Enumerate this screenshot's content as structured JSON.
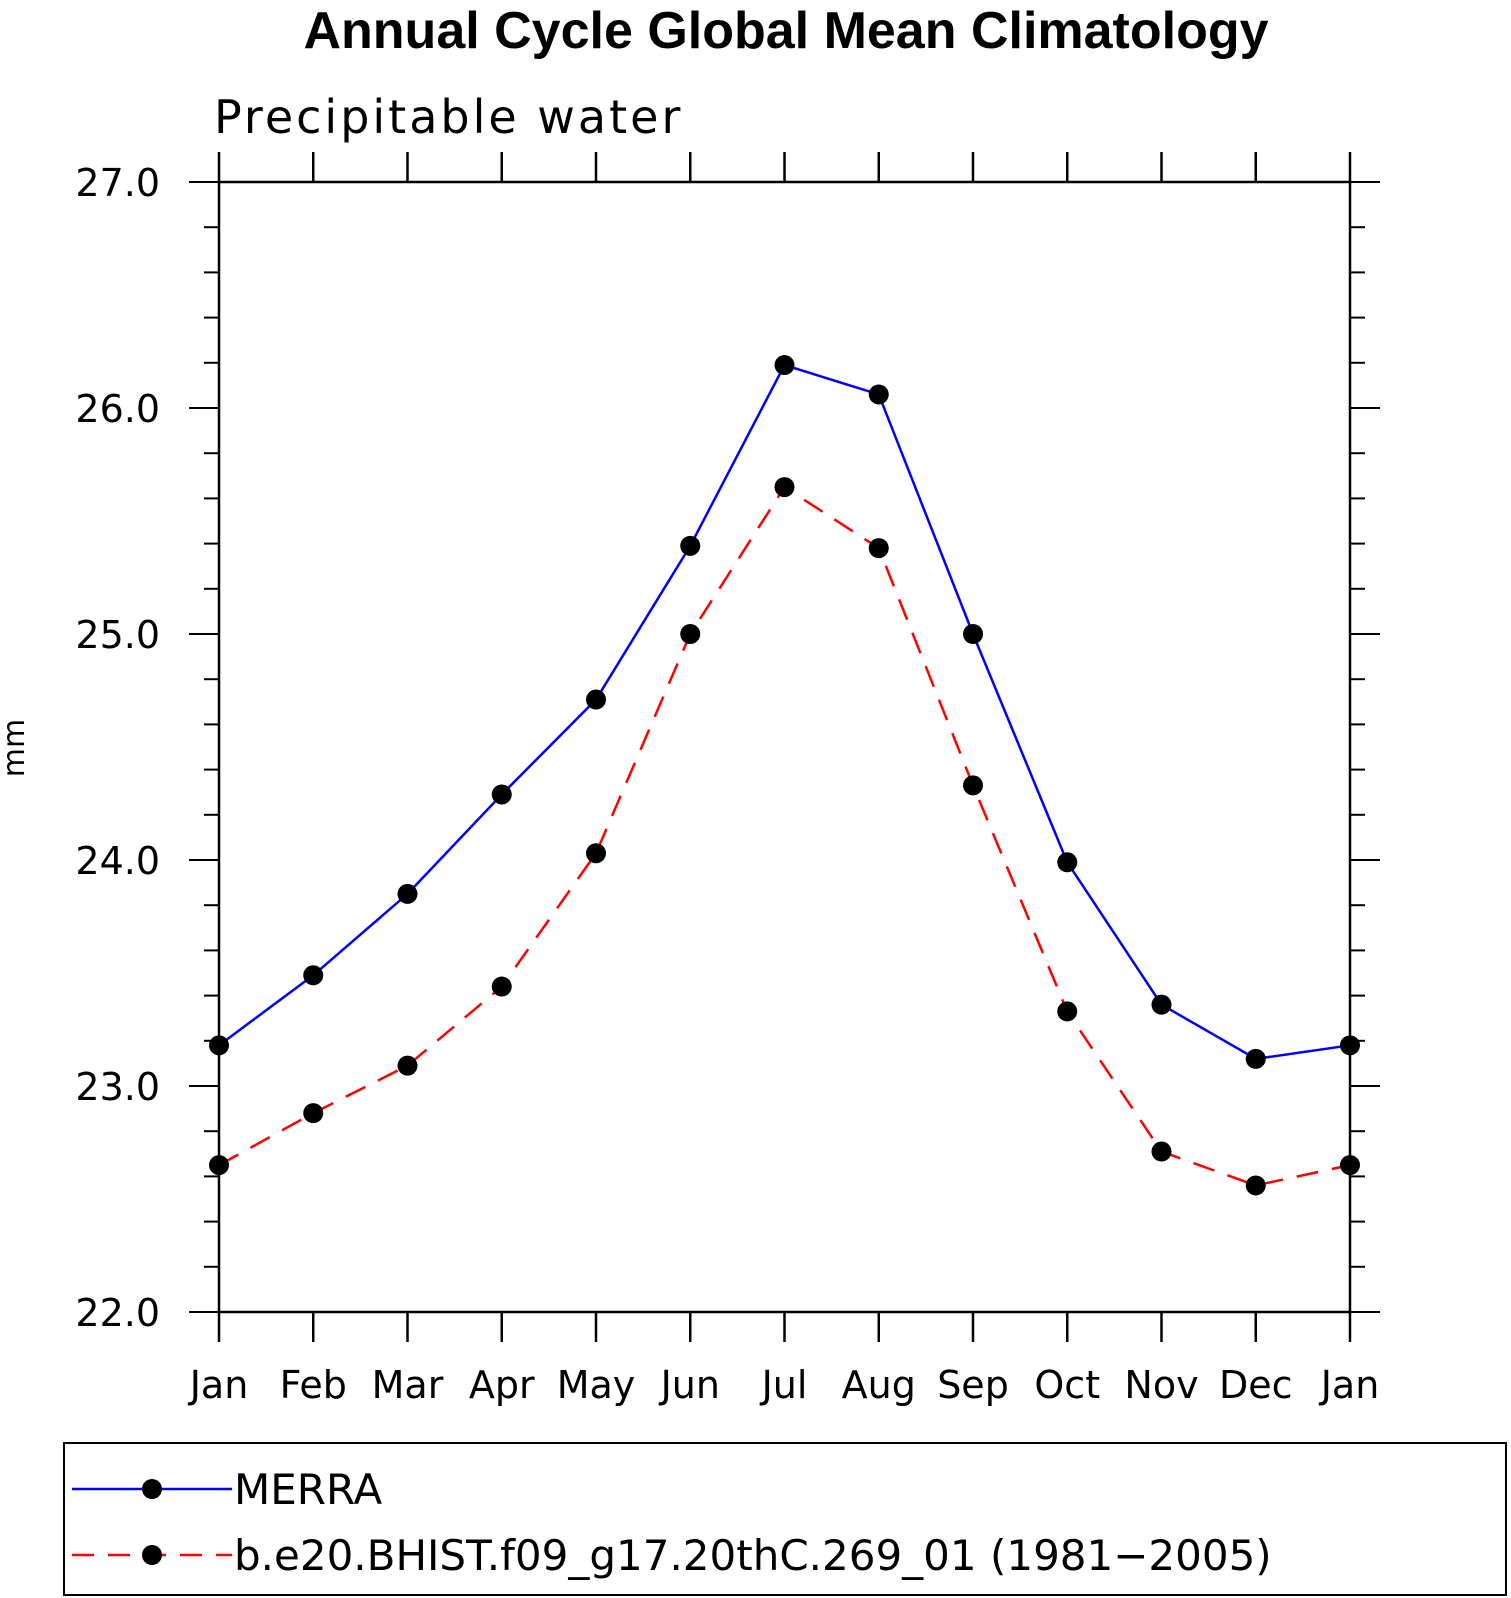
{
  "chart_data": {
    "type": "line",
    "title": "Annual Cycle Global Mean Climatology",
    "subtitle": "Precipitable water",
    "xlabel": "",
    "ylabel": "mm",
    "categories": [
      "Jan",
      "Feb",
      "Mar",
      "Apr",
      "May",
      "Jun",
      "Jul",
      "Aug",
      "Sep",
      "Oct",
      "Nov",
      "Dec",
      "Jan"
    ],
    "ylim": [
      22.0,
      27.0
    ],
    "yticks": [
      "22.0",
      "23.0",
      "24.0",
      "25.0",
      "26.0",
      "27.0"
    ],
    "series": [
      {
        "name": "MERRA",
        "color": "#0000ff",
        "dash": "solid",
        "values": [
          23.18,
          23.49,
          23.85,
          24.29,
          24.71,
          25.39,
          26.19,
          26.06,
          25.0,
          23.99,
          23.36,
          23.12,
          23.18
        ]
      },
      {
        "name": "b.e20.BHIST.f09_g17.20thC.269_01 (1981−2005)",
        "color": "#ff0000",
        "dash": "dashed",
        "values": [
          22.65,
          22.88,
          23.09,
          23.44,
          24.03,
          25.0,
          25.65,
          25.38,
          24.33,
          23.33,
          22.71,
          22.56,
          22.65
        ]
      }
    ],
    "legend_position": "bottom",
    "grid": false
  }
}
